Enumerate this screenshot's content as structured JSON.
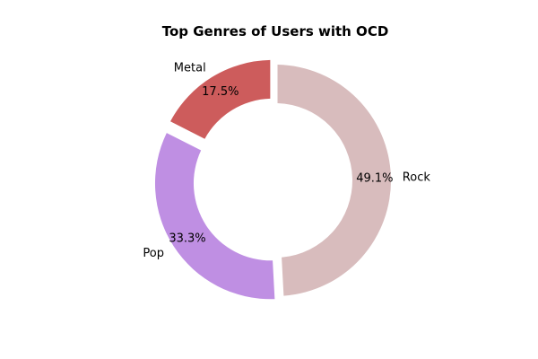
{
  "chart_data": {
    "type": "pie",
    "variant": "donut",
    "title": "Top Genres of Users with OCD",
    "slices": [
      {
        "label": "Metal",
        "value": 17.5,
        "pct_label": "17.5%",
        "color": "#cd5c5c",
        "exploded": true
      },
      {
        "label": "Pop",
        "value": 33.3,
        "pct_label": "33.3%",
        "color": "#bf8fe3",
        "exploded": true
      },
      {
        "label": "Rock",
        "value": 49.1,
        "pct_label": "49.1%",
        "color": "#d8bcbd",
        "exploded": false
      }
    ],
    "legend": "none"
  }
}
